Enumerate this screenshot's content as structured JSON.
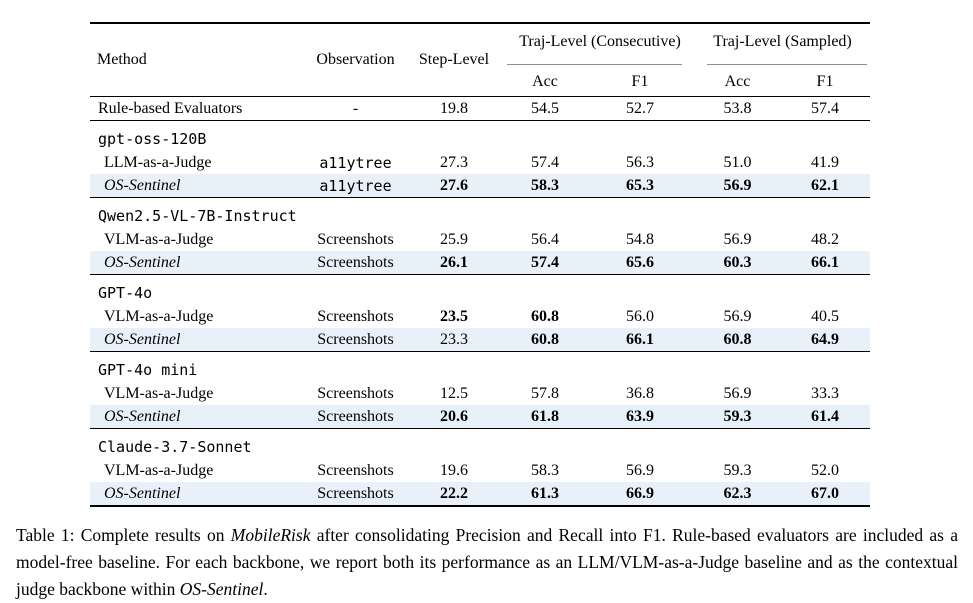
{
  "colors": {
    "highlight_row": "#e8f1fa",
    "rule": "#000000",
    "cmidrule": "#8f8f8f"
  },
  "table": {
    "header": {
      "method": "Method",
      "observation": "Observation",
      "step_level": "Step-Level",
      "traj_consecutive": "Traj-Level (Consecutive)",
      "traj_sampled": "Traj-Level (Sampled)",
      "acc": "Acc",
      "f1": "F1"
    },
    "baseline_row": {
      "method": "Rule-based Evaluators",
      "observation": "-",
      "observation_mono": false,
      "values": [
        "19.8",
        "54.5",
        "52.7",
        "53.8",
        "57.4"
      ],
      "bold": [
        false,
        false,
        false,
        false,
        false
      ]
    },
    "sections": [
      {
        "group": "gpt-oss-120B",
        "rows": [
          {
            "method": "LLM-as-a-Judge",
            "italic": false,
            "highlight": false,
            "observation": "a11ytree",
            "observation_mono": true,
            "values": [
              "27.3",
              "57.4",
              "56.3",
              "51.0",
              "41.9"
            ],
            "bold": [
              false,
              false,
              false,
              false,
              false
            ]
          },
          {
            "method": "OS-Sentinel",
            "italic": true,
            "highlight": true,
            "observation": "a11ytree",
            "observation_mono": true,
            "values": [
              "27.6",
              "58.3",
              "65.3",
              "56.9",
              "62.1"
            ],
            "bold": [
              true,
              true,
              true,
              true,
              true
            ]
          }
        ]
      },
      {
        "group": "Qwen2.5-VL-7B-Instruct",
        "rows": [
          {
            "method": "VLM-as-a-Judge",
            "italic": false,
            "highlight": false,
            "observation": "Screenshots",
            "observation_mono": false,
            "values": [
              "25.9",
              "56.4",
              "54.8",
              "56.9",
              "48.2"
            ],
            "bold": [
              false,
              false,
              false,
              false,
              false
            ]
          },
          {
            "method": "OS-Sentinel",
            "italic": true,
            "highlight": true,
            "observation": "Screenshots",
            "observation_mono": false,
            "values": [
              "26.1",
              "57.4",
              "65.6",
              "60.3",
              "66.1"
            ],
            "bold": [
              true,
              true,
              true,
              true,
              true
            ]
          }
        ]
      },
      {
        "group": "GPT-4o",
        "rows": [
          {
            "method": "VLM-as-a-Judge",
            "italic": false,
            "highlight": false,
            "observation": "Screenshots",
            "observation_mono": false,
            "values": [
              "23.5",
              "60.8",
              "56.0",
              "56.9",
              "40.5"
            ],
            "bold": [
              true,
              true,
              false,
              false,
              false
            ]
          },
          {
            "method": "OS-Sentinel",
            "italic": true,
            "highlight": true,
            "observation": "Screenshots",
            "observation_mono": false,
            "values": [
              "23.3",
              "60.8",
              "66.1",
              "60.8",
              "64.9"
            ],
            "bold": [
              false,
              true,
              true,
              true,
              true
            ]
          }
        ]
      },
      {
        "group": "GPT-4o mini",
        "rows": [
          {
            "method": "VLM-as-a-Judge",
            "italic": false,
            "highlight": false,
            "observation": "Screenshots",
            "observation_mono": false,
            "values": [
              "12.5",
              "57.8",
              "36.8",
              "56.9",
              "33.3"
            ],
            "bold": [
              false,
              false,
              false,
              false,
              false
            ]
          },
          {
            "method": "OS-Sentinel",
            "italic": true,
            "highlight": true,
            "observation": "Screenshots",
            "observation_mono": false,
            "values": [
              "20.6",
              "61.8",
              "63.9",
              "59.3",
              "61.4"
            ],
            "bold": [
              true,
              true,
              true,
              true,
              true
            ]
          }
        ]
      },
      {
        "group": "Claude-3.7-Sonnet",
        "rows": [
          {
            "method": "VLM-as-a-Judge",
            "italic": false,
            "highlight": false,
            "observation": "Screenshots",
            "observation_mono": false,
            "values": [
              "19.6",
              "58.3",
              "56.9",
              "59.3",
              "52.0"
            ],
            "bold": [
              false,
              false,
              false,
              false,
              false
            ]
          },
          {
            "method": "OS-Sentinel",
            "italic": true,
            "highlight": true,
            "observation": "Screenshots",
            "observation_mono": false,
            "values": [
              "22.2",
              "61.3",
              "66.9",
              "62.3",
              "67.0"
            ],
            "bold": [
              true,
              true,
              true,
              true,
              true
            ]
          }
        ]
      }
    ]
  },
  "caption": {
    "segments": [
      {
        "text": "Table 1: Complete results on ",
        "italic": false
      },
      {
        "text": "MobileRisk",
        "italic": true
      },
      {
        "text": " after consolidating Precision and Recall into F1. Rule-based evaluators are included as a model-free baseline. For each backbone, we report both its performance as an LLM/VLM-as-a-Judge baseline and as the contextual judge backbone within ",
        "italic": false
      },
      {
        "text": "OS-Sentinel",
        "italic": true
      },
      {
        "text": ".",
        "italic": false
      }
    ]
  }
}
